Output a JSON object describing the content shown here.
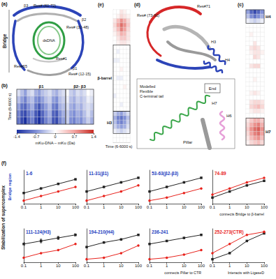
{
  "figure": {
    "structure_a": {
      "label": "(a)",
      "side_label": "Bridge",
      "labels": [
        "β3",
        "Res# (61-72)",
        "β2",
        "Res# (32-48)",
        "dsDNA",
        "Res#1",
        "Res#65",
        "β1",
        "Res# (12-15)"
      ]
    },
    "structure_d": {
      "label": "(d)",
      "labels": [
        "Res# (73-91)",
        "Res#71",
        "H3",
        "H4"
      ]
    },
    "structure_tail": {
      "labels": [
        "End",
        "H7",
        "H6",
        "Pillar"
      ],
      "tail_label": [
        "Modelled",
        "Flexible",
        "C-terminal tail"
      ]
    },
    "colorbar": {
      "title": "mKu-DNA – mKu (Da)",
      "range": [
        -1.4,
        1.4
      ],
      "ticks": [
        -1.4,
        -0.7,
        0,
        0.7,
        1.4
      ],
      "colors": [
        "#1a2fa0",
        "#7f8fd6",
        "#ffffff",
        "#f2a3a0",
        "#c62a22"
      ]
    },
    "panel_f": {
      "label": "(f)",
      "y_title": "Stabilization of supercomplex",
      "row_label": "Bridge region"
    }
  },
  "chart_data": [
    {
      "type": "heatmap",
      "label": "(b)",
      "y_title": "Time (6-6000 s)",
      "tick_labels": false,
      "sections": [
        {
          "label": "β1",
          "from": 0,
          "to": 13
        },
        {
          "label": "β2- β3",
          "from": 14,
          "to": 21
        }
      ],
      "cells": [
        [
          -0.2,
          -0.4,
          -0.6,
          -0.3,
          -0.2,
          -0.5,
          -0.6,
          -0.4,
          -0.3,
          -0.2,
          -0.4,
          -0.5,
          -0.3,
          -0.2,
          0,
          -0.3,
          -0.4,
          -0.2,
          -0.3,
          -0.2,
          0,
          -0.1
        ],
        [
          -0.4,
          -0.6,
          -0.8,
          -0.5,
          -0.4,
          -0.7,
          -0.8,
          -0.6,
          -0.4,
          -0.3,
          -0.6,
          -0.7,
          -0.4,
          -0.3,
          -0.1,
          -0.4,
          -0.5,
          -0.3,
          -0.4,
          -0.3,
          -0.1,
          -0.2
        ],
        [
          -0.6,
          -0.9,
          -1.0,
          -0.7,
          -0.5,
          -0.9,
          -1.1,
          -0.8,
          -0.6,
          -0.4,
          -0.8,
          -0.9,
          -0.5,
          -0.4,
          -0.2,
          -0.5,
          -0.6,
          -0.4,
          -0.5,
          -0.3,
          -0.2,
          -0.3
        ],
        [
          -0.8,
          -1.1,
          -1.2,
          -0.9,
          -0.7,
          -1.1,
          -1.3,
          -1.0,
          -0.7,
          -0.5,
          -1.0,
          -1.1,
          -0.7,
          -0.5,
          -0.3,
          -0.6,
          -0.7,
          -0.5,
          -0.6,
          -0.4,
          -0.2,
          -0.4
        ],
        [
          -0.9,
          -1.2,
          -1.4,
          -1.0,
          -0.8,
          -1.2,
          -1.4,
          -1.1,
          -0.8,
          -0.6,
          -1.1,
          -1.2,
          -0.8,
          -0.6,
          -0.3,
          -0.7,
          -0.8,
          -0.6,
          -0.7,
          -0.5,
          -0.3,
          -0.5
        ]
      ]
    },
    {
      "type": "heatmap",
      "label": "(e)",
      "x_title": "Time (6-6000 s)",
      "tick_labels": false,
      "sections": [
        {
          "label": "β-barrel",
          "from": 8,
          "to": 22
        },
        {
          "label": "H3",
          "from": 23,
          "to": 27
        }
      ],
      "cells": [
        [
          0,
          0,
          0.2,
          0.1,
          0
        ],
        [
          0,
          0.1,
          0.3,
          0.2,
          0.1
        ],
        [
          0.2,
          0.5,
          0.8,
          0.6,
          0.3
        ],
        [
          0.3,
          0.7,
          1.0,
          0.8,
          0.4
        ],
        [
          0.2,
          0.5,
          0.9,
          0.7,
          0.3
        ],
        [
          0.1,
          0.3,
          0.6,
          0.5,
          0.2
        ],
        [
          0,
          0.2,
          0.4,
          0.4,
          0.2
        ],
        [
          0,
          0.1,
          0.2,
          0.2,
          0.1
        ],
        [
          0,
          0,
          0,
          0,
          0
        ],
        [
          0,
          -0.1,
          0,
          0,
          0
        ],
        [
          0,
          0,
          0,
          0,
          0
        ],
        [
          -0.1,
          -0.1,
          0,
          0,
          0
        ],
        [
          0,
          0,
          0,
          0,
          0
        ],
        [
          0,
          0,
          0.1,
          0,
          0
        ],
        [
          0,
          0,
          0,
          0,
          0
        ],
        [
          0,
          -0.1,
          -0.1,
          0,
          0
        ],
        [
          0,
          0,
          0,
          0,
          0
        ],
        [
          0,
          0,
          0,
          0.1,
          0
        ],
        [
          0,
          0,
          0,
          0,
          0
        ],
        [
          -0.1,
          0,
          0,
          0,
          0
        ],
        [
          0,
          0,
          0,
          0,
          0
        ],
        [
          0,
          0,
          -0.1,
          0,
          0
        ],
        [
          0,
          0,
          0,
          0,
          0
        ],
        [
          -0.3,
          -0.5,
          -0.6,
          -0.4,
          -0.2
        ],
        [
          -0.5,
          -0.8,
          -0.9,
          -0.7,
          -0.4
        ],
        [
          -0.4,
          -0.7,
          -0.8,
          -0.6,
          -0.3
        ],
        [
          -0.3,
          -0.5,
          -0.6,
          -0.5,
          -0.2
        ],
        [
          -0.1,
          -0.2,
          -0.3,
          -0.2,
          -0.1
        ],
        [
          0,
          0,
          0,
          0,
          0
        ],
        [
          0,
          0,
          0,
          0,
          0
        ]
      ]
    },
    {
      "type": "heatmap",
      "label": "(c)",
      "tick_labels": false,
      "sections": [
        {
          "label": "H4",
          "from": 0,
          "to": 2
        },
        {
          "label": "H7",
          "from": 24,
          "to": 29
        }
      ],
      "cells": [
        [
          -0.6,
          -1.0,
          -1.2,
          -1.0,
          -0.7
        ],
        [
          -0.4,
          -0.7,
          -0.9,
          -0.7,
          -0.5
        ],
        [
          -0.1,
          -0.2,
          -0.3,
          -0.2,
          -0.1
        ],
        [
          0,
          0,
          0,
          0,
          0
        ],
        [
          0,
          0,
          0,
          0,
          0
        ],
        [
          0,
          0.1,
          0,
          0,
          0
        ],
        [
          0,
          0,
          0,
          0,
          0
        ],
        [
          0,
          0,
          0.2,
          0,
          0
        ],
        [
          0,
          0.2,
          0.3,
          0.2,
          0
        ],
        [
          0,
          0.1,
          0.2,
          0.2,
          0.1
        ],
        [
          0,
          0,
          0.3,
          0.2,
          0
        ],
        [
          0,
          0,
          0,
          0,
          0
        ],
        [
          0,
          0.2,
          0.3,
          0.3,
          0
        ],
        [
          0,
          0,
          0,
          0,
          0
        ],
        [
          0,
          0,
          0,
          0,
          0
        ],
        [
          0,
          0,
          0.1,
          0,
          0
        ],
        [
          0,
          0,
          0,
          0,
          0
        ],
        [
          0,
          0,
          0,
          0,
          0
        ],
        [
          0,
          0.1,
          0.2,
          0.1,
          0
        ],
        [
          0,
          0,
          0,
          0,
          0
        ],
        [
          0,
          0.2,
          0.3,
          0.3,
          0.2
        ],
        [
          0,
          0.3,
          0.4,
          0.5,
          0.3
        ],
        [
          0,
          0.1,
          0.2,
          0.2,
          0.1
        ],
        [
          0,
          0,
          0,
          0,
          0
        ],
        [
          0.2,
          0.4,
          0.6,
          0.6,
          0.4
        ],
        [
          0.3,
          0.6,
          0.8,
          0.9,
          0.6
        ],
        [
          0.4,
          0.8,
          1.0,
          1.1,
          0.8
        ],
        [
          0.3,
          0.7,
          0.9,
          1.0,
          0.7
        ],
        [
          0.2,
          0.5,
          0.7,
          0.8,
          0.5
        ],
        [
          0.1,
          0.3,
          0.4,
          0.5,
          0.3
        ]
      ]
    },
    {
      "type": "line",
      "title": {
        "text": "1-6",
        "color": "#1f3fbf"
      },
      "log": "x",
      "tick_labels": "x",
      "x": [
        0.1,
        1,
        10,
        100
      ],
      "xlim": [
        0.1,
        100
      ],
      "xticks": [
        0.1,
        1,
        10,
        100
      ],
      "ylim": [
        0,
        11
      ],
      "series": [
        {
          "color": "#222222",
          "marker": "square",
          "values": [
            3.5,
            5,
            6.5,
            8
          ]
        },
        {
          "color": "#e8221c",
          "marker": "circle",
          "values": [
            1,
            2.5,
            4,
            5.5
          ]
        }
      ]
    },
    {
      "type": "line",
      "title": {
        "text": "11-31(β1)",
        "color": "#1f3fbf"
      },
      "log": "x",
      "tick_labels": "x",
      "x": [
        0.1,
        1,
        10,
        100
      ],
      "xlim": [
        0.1,
        100
      ],
      "xticks": [
        0.1,
        1,
        10,
        100
      ],
      "ylim": [
        0,
        11
      ],
      "series": [
        {
          "color": "#222222",
          "marker": "square",
          "values": [
            4,
            5.5,
            7,
            8.5
          ]
        },
        {
          "color": "#e8221c",
          "marker": "circle",
          "values": [
            1,
            2.5,
            4,
            6
          ]
        }
      ]
    },
    {
      "type": "line",
      "title": {
        "text": "53-63(β2-β3)",
        "color": "#1f3fbf"
      },
      "log": "x",
      "tick_labels": "x",
      "x": [
        0.1,
        1,
        10,
        100
      ],
      "xlim": [
        0.1,
        100
      ],
      "xticks": [
        0.1,
        1,
        10,
        100
      ],
      "ylim": [
        0,
        11
      ],
      "series": [
        {
          "color": "#222222",
          "marker": "square",
          "values": [
            4,
            5.5,
            7,
            8.5
          ]
        },
        {
          "color": "#e8221c",
          "marker": "circle",
          "values": [
            1,
            2,
            3.5,
            5
          ]
        }
      ]
    },
    {
      "type": "line",
      "title": {
        "text": "74-89",
        "color": "#e8221c"
      },
      "log": "x",
      "tick_labels": "x",
      "annotation": "connects Bridge to β-barrel",
      "x": [
        0.1,
        1,
        10,
        100
      ],
      "xlim": [
        0.1,
        100
      ],
      "xticks": [
        0.1,
        1,
        10,
        100
      ],
      "ylim": [
        0,
        11
      ],
      "series": [
        {
          "color": "#222222",
          "marker": "square",
          "values": [
            2,
            4,
            6,
            7.5
          ]
        },
        {
          "color": "#e8221c",
          "marker": "circle",
          "values": [
            3,
            5,
            7,
            8.5
          ]
        }
      ]
    },
    {
      "type": "line",
      "title": {
        "text": "111-124(H3)",
        "color": "#1f3fbf"
      },
      "log": "x",
      "tick_labels": "x",
      "x": [
        0.1,
        1,
        10,
        100
      ],
      "xlim": [
        0.1,
        100
      ],
      "xticks": [
        0.1,
        1,
        10,
        100
      ],
      "ylim": [
        0,
        11
      ],
      "series": [
        {
          "color": "#222222",
          "marker": "square",
          "values": [
            6,
            7,
            8,
            9
          ],
          "errors": [
            0.5,
            0.6,
            0.5,
            0.4
          ]
        },
        {
          "color": "#e8221c",
          "marker": "circle",
          "values": [
            1.5,
            3,
            4,
            6
          ]
        }
      ]
    },
    {
      "type": "line",
      "title": {
        "text": "194-210(H4)",
        "color": "#1f3fbf"
      },
      "log": "x",
      "tick_labels": "x",
      "x": [
        0.1,
        1,
        10,
        100
      ],
      "xlim": [
        0.1,
        100
      ],
      "xticks": [
        0.1,
        1,
        10,
        100
      ],
      "ylim": [
        0,
        11
      ],
      "series": [
        {
          "color": "#222222",
          "marker": "square",
          "values": [
            5,
            6.5,
            7.5,
            9
          ]
        },
        {
          "color": "#e8221c",
          "marker": "circle",
          "values": [
            1,
            1.5,
            3,
            5.5
          ]
        }
      ]
    },
    {
      "type": "line",
      "title": {
        "text": "236-241",
        "color": "#1f3fbf"
      },
      "log": "x",
      "tick_labels": "x",
      "annotation": "connects Pillar to CTR",
      "x": [
        0.1,
        1,
        10,
        100
      ],
      "xlim": [
        0.1,
        100
      ],
      "xticks": [
        0.1,
        1,
        10,
        100
      ],
      "ylim": [
        0,
        11
      ],
      "series": [
        {
          "color": "#222222",
          "marker": "square",
          "values": [
            6,
            7,
            8,
            9
          ]
        },
        {
          "color": "#e8221c",
          "marker": "circle",
          "values": [
            1,
            1.5,
            2.5,
            4
          ]
        }
      ]
    },
    {
      "type": "line",
      "title": {
        "text": "252-273(CTR)",
        "color": "#e8221c"
      },
      "log": "x",
      "tick_labels": "x",
      "annotation": "Interacts with LigaseD",
      "x": [
        0.1,
        1,
        10,
        100
      ],
      "xlim": [
        0.1,
        100
      ],
      "xticks": [
        0.1,
        1,
        10,
        100
      ],
      "ylim": [
        0,
        11
      ],
      "series": [
        {
          "color": "#222222",
          "marker": "square",
          "values": [
            1,
            3,
            7,
            9.5
          ]
        },
        {
          "color": "#e8221c",
          "marker": "circle",
          "values": [
            3,
            6,
            9,
            10
          ]
        }
      ]
    }
  ]
}
